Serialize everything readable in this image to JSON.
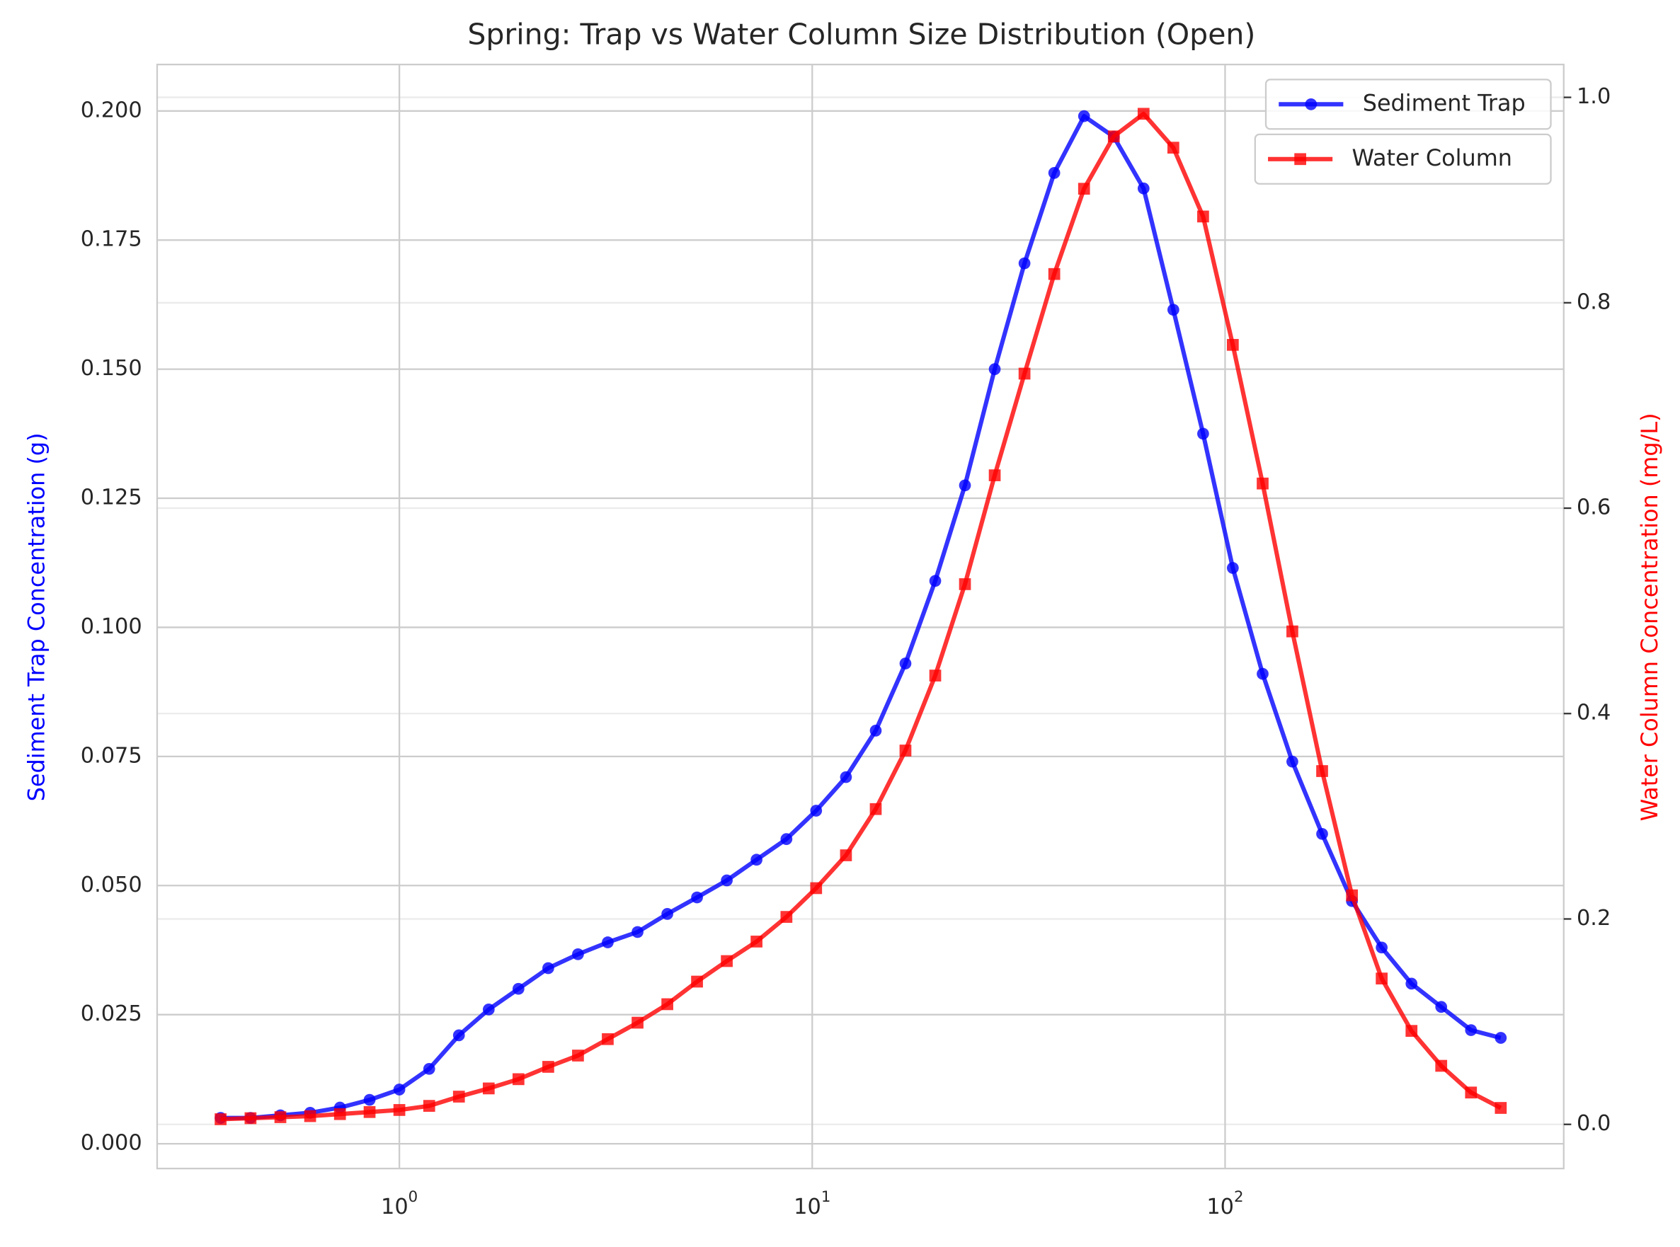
{
  "chart_data": {
    "type": "line",
    "title": "Spring: Trap vs Water Column Size Distribution (Open)",
    "ylabel": "Sediment Trap Concentration (g)",
    "y2label": "Water Column Concentration (mg/L)",
    "xscale": "log",
    "x": [
      0.369,
      0.436,
      0.515,
      0.608,
      0.718,
      0.847,
      1.0,
      1.181,
      1.394,
      1.646,
      1.943,
      2.294,
      2.708,
      3.197,
      3.775,
      4.457,
      5.26,
      6.21,
      7.33,
      8.66,
      10.22,
      12.07,
      14.25,
      16.82,
      19.86,
      23.44,
      27.67,
      32.67,
      38.57,
      45.54,
      53.76,
      63.47,
      74.93,
      88.46,
      104.4,
      123.3,
      145.5,
      171.8,
      202.9,
      239.5,
      282.8,
      333.8,
      394.1,
      465.3
    ],
    "series": [
      {
        "name": "Sediment Trap",
        "color": "#0000ff",
        "marker": "circle",
        "axis": "y",
        "values": [
          0.005,
          0.005,
          0.0055,
          0.006,
          0.007,
          0.0085,
          0.0105,
          0.0145,
          0.021,
          0.026,
          0.03,
          0.034,
          0.0367,
          0.039,
          0.041,
          0.0445,
          0.0477,
          0.051,
          0.055,
          0.059,
          0.0645,
          0.071,
          0.08,
          0.093,
          0.109,
          0.1275,
          0.15,
          0.1705,
          0.188,
          0.199,
          0.195,
          0.185,
          0.1615,
          0.1375,
          0.1115,
          0.091,
          0.074,
          0.06,
          0.047,
          0.038,
          0.031,
          0.0265,
          0.022,
          0.0205
        ]
      },
      {
        "name": "Water Column",
        "color": "#ff0000",
        "marker": "square",
        "axis": "y2",
        "values": [
          0.005,
          0.006,
          0.007,
          0.008,
          0.01,
          0.012,
          0.014,
          0.018,
          0.027,
          0.035,
          0.044,
          0.056,
          0.067,
          0.083,
          0.099,
          0.117,
          0.139,
          0.159,
          0.178,
          0.202,
          0.23,
          0.262,
          0.307,
          0.364,
          0.437,
          0.526,
          0.632,
          0.731,
          0.828,
          0.911,
          0.962,
          0.984,
          0.951,
          0.884,
          0.759,
          0.624,
          0.48,
          0.344,
          0.223,
          0.142,
          0.091,
          0.057,
          0.031,
          0.016
        ]
      }
    ],
    "xlim": [
      0.259,
      661
    ],
    "xticks": [
      {
        "value": 1,
        "label": "10^0"
      },
      {
        "value": 10,
        "label": "10^1"
      },
      {
        "value": 100,
        "label": "10^2"
      }
    ],
    "ylim": [
      -0.0048,
      0.209
    ],
    "yticks": [
      {
        "value": 0,
        "label": "0.000"
      },
      {
        "value": 0.025,
        "label": "0.025"
      },
      {
        "value": 0.05,
        "label": "0.050"
      },
      {
        "value": 0.075,
        "label": "0.075"
      },
      {
        "value": 0.1,
        "label": "0.100"
      },
      {
        "value": 0.125,
        "label": "0.125"
      },
      {
        "value": 0.15,
        "label": "0.150"
      },
      {
        "value": 0.175,
        "label": "0.175"
      },
      {
        "value": 0.2,
        "label": "0.200"
      }
    ],
    "y2lim": [
      -0.043,
      1.032
    ],
    "y2ticks": [
      {
        "value": 0,
        "label": "0.0"
      },
      {
        "value": 0.2,
        "label": "0.2"
      },
      {
        "value": 0.4,
        "label": "0.4"
      },
      {
        "value": 0.6,
        "label": "0.6"
      },
      {
        "value": 0.8,
        "label": "0.8"
      },
      {
        "value": 1,
        "label": "1.0"
      }
    ],
    "grid": true,
    "legend": "upper right"
  }
}
